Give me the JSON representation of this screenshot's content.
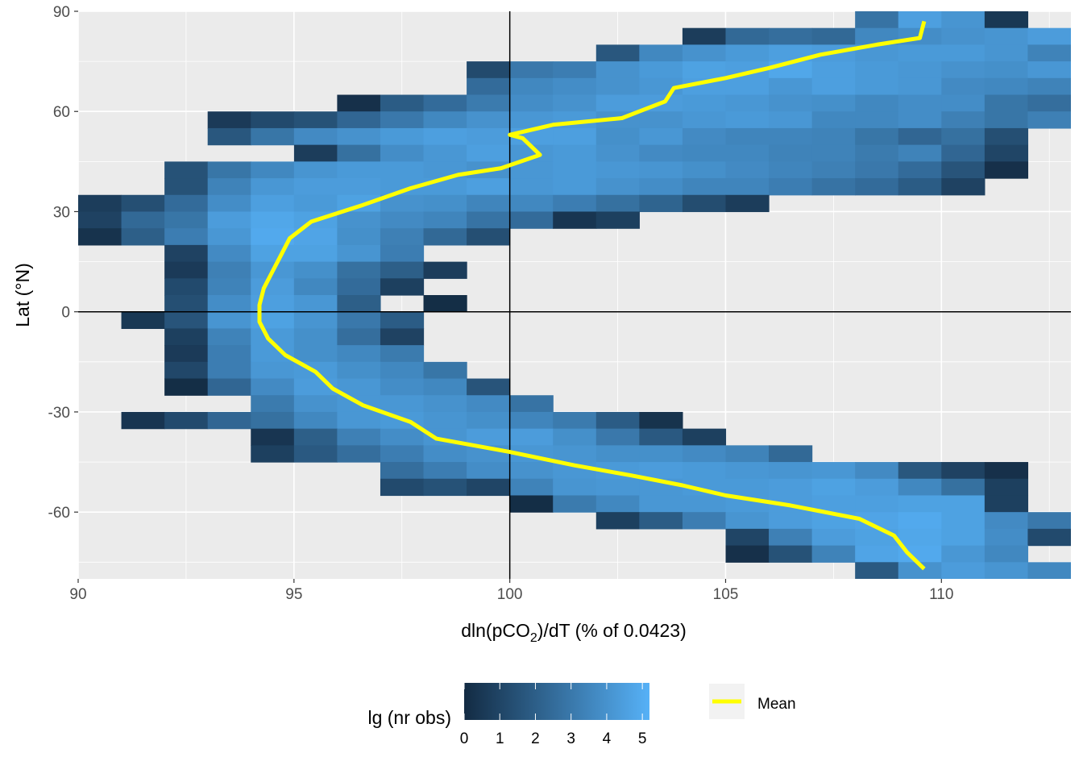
{
  "chart_data": {
    "type": "heatmap",
    "xlabel_parts": {
      "prefix": "dln",
      "inner_pre": "pCO",
      "sub": "2",
      "inner_post": "",
      "suffix": "/dT (% of 0.0423)"
    },
    "ylabel": "Lat (°N)",
    "xlim": [
      90,
      113
    ],
    "ylim": [
      -80,
      90
    ],
    "x_ticks": [
      90,
      95,
      100,
      105,
      110
    ],
    "y_ticks": [
      90,
      60,
      30,
      0,
      -30,
      -60
    ],
    "y_tick_labels": [
      "90",
      "60",
      "30",
      "0",
      "-30",
      "-60"
    ],
    "x_tick_labels": [
      "90",
      "95",
      "100",
      "105",
      "110"
    ],
    "bin_width_x": 1,
    "bin_height_y": 5,
    "reference_lines": {
      "x": 100,
      "y": 0
    },
    "grid": true,
    "fill_scale": {
      "name": "lg (nr obs)",
      "low_color": "#132B43",
      "high_color": "#56B1F7",
      "limits": [
        0,
        5.2
      ],
      "breaks": [
        0,
        1,
        2,
        3,
        4,
        5
      ],
      "break_labels": [
        "0",
        "1",
        "2",
        "3",
        "4",
        "5"
      ]
    },
    "mean_series": {
      "name": "Mean",
      "color": "#FFFF00",
      "points": [
        [
          109.6,
          87
        ],
        [
          109.5,
          82
        ],
        [
          108.5,
          80
        ],
        [
          107.2,
          77
        ],
        [
          106.0,
          73
        ],
        [
          105.0,
          70
        ],
        [
          103.8,
          67
        ],
        [
          103.6,
          63
        ],
        [
          103.0,
          60
        ],
        [
          102.6,
          58
        ],
        [
          101.0,
          56
        ],
        [
          100.0,
          53
        ],
        [
          100.3,
          52
        ],
        [
          100.7,
          47
        ],
        [
          99.8,
          43
        ],
        [
          98.8,
          41
        ],
        [
          97.7,
          37
        ],
        [
          96.6,
          32
        ],
        [
          95.4,
          27
        ],
        [
          94.9,
          22
        ],
        [
          94.7,
          17
        ],
        [
          94.5,
          12
        ],
        [
          94.3,
          7
        ],
        [
          94.2,
          2
        ],
        [
          94.2,
          -3
        ],
        [
          94.4,
          -8
        ],
        [
          94.8,
          -13
        ],
        [
          95.5,
          -18
        ],
        [
          95.9,
          -23
        ],
        [
          96.6,
          -28
        ],
        [
          97.7,
          -33
        ],
        [
          98.3,
          -38
        ],
        [
          100.0,
          -42
        ],
        [
          101.5,
          -46
        ],
        [
          102.8,
          -49
        ],
        [
          104.0,
          -52
        ],
        [
          105.0,
          -55
        ],
        [
          106.5,
          -58
        ],
        [
          108.1,
          -62
        ],
        [
          108.9,
          -67
        ],
        [
          109.2,
          -72
        ],
        [
          109.6,
          -77
        ]
      ]
    },
    "rows": [
      {
        "lat": 87.5,
        "x0": 108,
        "values": [
          2.8,
          4.5,
          4.1,
          0.5
        ]
      },
      {
        "lat": 82.5,
        "x0": 104,
        "values": [
          0.7,
          2.4,
          2.6,
          2.4,
          3.6,
          3.8,
          4.0,
          4.1,
          4.4,
          2.8
        ]
      },
      {
        "lat": 77.5,
        "x0": 102,
        "values": [
          1.7,
          3.6,
          4.0,
          4.3,
          4.5,
          4.4,
          4.2,
          4.3,
          4.3,
          4.1,
          3.4
        ]
      },
      {
        "lat": 72.5,
        "x0": 99,
        "values": [
          1.2,
          3.0,
          3.2,
          4.0,
          4.3,
          4.6,
          4.5,
          4.8,
          4.5,
          4.3,
          4.2,
          4.0,
          3.9,
          4.2,
          3.6,
          0.9
        ]
      },
      {
        "lat": 67.5,
        "x0": 99,
        "values": [
          2.5,
          3.6,
          3.8,
          4.0,
          4.2,
          4.5,
          4.5,
          4.2,
          4.5,
          4.3,
          4.2,
          3.7,
          3.6,
          3.4,
          3.1,
          0.8
        ]
      },
      {
        "lat": 62.5,
        "x0": 96,
        "values": [
          0.2,
          1.9,
          2.5,
          3.1,
          3.8,
          4.0,
          4.4,
          4.4,
          4.3,
          4.2,
          4.0,
          3.9,
          3.6,
          3.8,
          3.8,
          2.9,
          2.6,
          1.0
        ]
      },
      {
        "lat": 57.5,
        "x0": 93,
        "values": [
          0.6,
          1.2,
          1.5,
          2.3,
          3.0,
          3.6,
          4.0,
          4.2,
          4.3,
          4.0,
          4.0,
          4.2,
          4.3,
          4.2,
          3.6,
          3.6,
          3.8,
          3.3,
          2.9,
          3.3,
          2.8
        ]
      },
      {
        "lat": 52.5,
        "x0": 93,
        "values": [
          1.7,
          2.9,
          3.7,
          4.0,
          4.3,
          4.5,
          4.4,
          4.5,
          4.5,
          3.9,
          4.2,
          3.7,
          3.5,
          3.5,
          3.4,
          2.9,
          2.3,
          2.7,
          1.4
        ]
      },
      {
        "lat": 47.5,
        "x0": 95,
        "values": [
          0.7,
          2.7,
          3.8,
          4.2,
          4.5,
          4.2,
          4.3,
          4.0,
          3.7,
          3.6,
          3.6,
          3.4,
          3.4,
          3.1,
          3.4,
          2.3,
          1.0
        ]
      },
      {
        "lat": 42.5,
        "x0": 92,
        "values": [
          1.5,
          2.9,
          3.6,
          4.1,
          4.3,
          4.3,
          4.2,
          4.0,
          4.2,
          4.3,
          4.2,
          4.1,
          3.9,
          3.7,
          3.5,
          3.3,
          3.0,
          2.5,
          1.6,
          0.2
        ]
      },
      {
        "lat": 37.5,
        "x0": 92,
        "values": [
          1.5,
          3.4,
          4.2,
          4.4,
          4.4,
          4.3,
          4.3,
          4.5,
          4.2,
          4.3,
          4.0,
          3.8,
          3.5,
          3.5,
          3.2,
          2.8,
          2.5,
          1.9,
          0.9
        ]
      },
      {
        "lat": 32.5,
        "x0": 90,
        "values": [
          0.7,
          1.4,
          2.5,
          3.8,
          4.5,
          4.3,
          4.6,
          4.0,
          3.9,
          3.5,
          3.6,
          3.2,
          2.7,
          2.2,
          1.3,
          0.7
        ]
      },
      {
        "lat": 27.5,
        "x0": 90,
        "values": [
          0.9,
          2.4,
          2.9,
          4.4,
          4.8,
          4.6,
          4.0,
          3.7,
          3.5,
          2.8,
          2.5,
          0.4,
          0.8
        ]
      },
      {
        "lat": 22.5,
        "x0": 90,
        "values": [
          0.3,
          2.0,
          3.2,
          4.2,
          4.9,
          4.7,
          3.9,
          3.3,
          2.4,
          1.4
        ]
      },
      {
        "lat": 17.5,
        "x0": 92,
        "values": [
          0.9,
          3.7,
          4.6,
          4.6,
          4.1,
          3.2
        ]
      },
      {
        "lat": 12.5,
        "x0": 92,
        "values": [
          0.6,
          3.3,
          4.2,
          3.9,
          2.7,
          2.0,
          0.7
        ]
      },
      {
        "lat": 7.5,
        "x0": 92,
        "values": [
          1.2,
          3.4,
          4.4,
          3.6,
          2.5,
          0.8
        ]
      },
      {
        "lat": 2.5,
        "x0": 92,
        "values": [
          1.4,
          3.8,
          4.5,
          4.2,
          2.0,
          -1,
          0.1
        ]
      },
      {
        "lat": -2.5,
        "x0": 91,
        "values": [
          0.5,
          1.6,
          4.1,
          4.6,
          4.1,
          3.0,
          1.9
        ]
      },
      {
        "lat": -7.5,
        "x0": 92,
        "values": [
          0.8,
          3.4,
          4.3,
          3.9,
          2.6,
          0.9
        ]
      },
      {
        "lat": -12.5,
        "x0": 92,
        "values": [
          0.6,
          3.2,
          4.3,
          3.9,
          3.6,
          3.1
        ]
      },
      {
        "lat": -17.5,
        "x0": 92,
        "values": [
          1.1,
          3.2,
          4.2,
          4.3,
          3.9,
          3.6,
          2.9
        ]
      },
      {
        "lat": -22.5,
        "x0": 92,
        "values": [
          0.1,
          2.3,
          3.7,
          4.4,
          4.2,
          3.8,
          3.6,
          1.6
        ]
      },
      {
        "lat": -27.5,
        "x0": 94,
        "values": [
          3.1,
          4.0,
          4.2,
          4.2,
          4.0,
          3.7,
          2.8
        ]
      },
      {
        "lat": -32.5,
        "x0": 91,
        "values": [
          0.4,
          1.2,
          2.3,
          2.7,
          3.6,
          4.2,
          4.3,
          4.1,
          3.9,
          3.5,
          3.1,
          1.9,
          0.3
        ]
      },
      {
        "lat": -37.5,
        "x0": 94,
        "values": [
          0.4,
          2.0,
          3.3,
          3.8,
          4.1,
          4.4,
          4.4,
          3.9,
          3.0,
          1.8,
          0.8
        ]
      },
      {
        "lat": -42.5,
        "x0": 94,
        "values": [
          0.8,
          1.8,
          2.6,
          3.2,
          3.8,
          4.0,
          4.2,
          4.1,
          3.9,
          3.9,
          3.7,
          3.4,
          2.4
        ]
      },
      {
        "lat": -47.5,
        "x0": 97,
        "values": [
          2.6,
          3.2,
          3.8,
          4.0,
          4.2,
          4.3,
          4.4,
          4.3,
          4.2,
          4.1,
          4.2,
          3.7,
          1.7,
          0.9,
          0.2
        ]
      },
      {
        "lat": -52.5,
        "x0": 97,
        "values": [
          1.2,
          1.5,
          1.0,
          3.4,
          4.1,
          4.2,
          4.2,
          4.3,
          4.3,
          4.4,
          4.6,
          4.4,
          3.6,
          2.7,
          0.8
        ]
      },
      {
        "lat": -57.5,
        "x0": 100,
        "values": [
          0.1,
          3.1,
          3.6,
          4.2,
          4.2,
          4.3,
          4.4,
          4.5,
          4.5,
          4.6,
          4.6,
          0.8
        ]
      },
      {
        "lat": -62.5,
        "x0": 102,
        "values": [
          0.8,
          1.9,
          3.2,
          4.1,
          4.4,
          4.6,
          4.7,
          4.9,
          4.6,
          3.7,
          3.0
        ]
      },
      {
        "lat": -67.5,
        "x0": 105,
        "values": [
          1.0,
          3.3,
          4.4,
          4.6,
          4.8,
          4.6,
          3.8,
          1.2
        ]
      },
      {
        "lat": -72.5,
        "x0": 105,
        "values": [
          0.2,
          1.5,
          3.4,
          4.7,
          4.9,
          4.2,
          3.6
        ]
      },
      {
        "lat": -77.5,
        "x0": 108,
        "values": [
          1.8,
          4.0,
          4.4,
          4.1,
          3.6,
          0.4
        ]
      }
    ]
  }
}
